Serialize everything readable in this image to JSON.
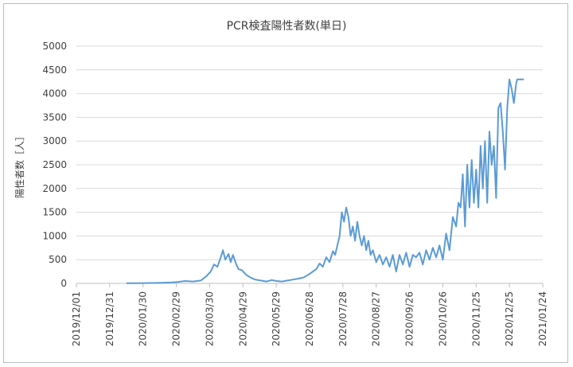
{
  "chart_data": {
    "type": "line",
    "title": "PCR検査陽性者数(単日)",
    "xlabel": "",
    "ylabel": "陽性者数［人］",
    "ylim": [
      0,
      5000
    ],
    "yticks": [
      "0",
      "500",
      "1000",
      "1500",
      "2000",
      "2500",
      "3000",
      "3500",
      "4000",
      "4500",
      "5000"
    ],
    "xticks": [
      "2019/12/01",
      "2019/12/31",
      "2020/01/30",
      "2020/02/29",
      "2020/03/30",
      "2020/04/29",
      "2020/05/29",
      "2020/06/28",
      "2020/07/28",
      "2020/08/27",
      "2020/09/26",
      "2020/10/26",
      "2020/11/25",
      "2020/12/25",
      "2021/01/24"
    ],
    "xlim": [
      "2019/12/01",
      "2021/01/24"
    ],
    "grid": "horizontal",
    "line_color": "#5b9bd5",
    "series": [
      {
        "x": [
          "2020/01/15",
          "2020/01/25",
          "2020/02/05",
          "2020/02/15",
          "2020/02/25",
          "2020/03/01",
          "2020/03/08",
          "2020/03/15",
          "2020/03/22",
          "2020/03/27",
          "2020/03/31",
          "2020/04/03",
          "2020/04/06",
          "2020/04/09",
          "2020/04/11",
          "2020/04/13",
          "2020/04/16",
          "2020/04/18",
          "2020/04/20",
          "2020/04/23",
          "2020/04/25",
          "2020/04/28",
          "2020/05/02",
          "2020/05/06",
          "2020/05/10",
          "2020/05/15",
          "2020/05/20",
          "2020/05/25",
          "2020/05/29",
          "2020/06/03",
          "2020/06/08",
          "2020/06/13",
          "2020/06/18",
          "2020/06/23",
          "2020/06/28",
          "2020/07/01",
          "2020/07/04",
          "2020/07/07",
          "2020/07/10",
          "2020/07/13",
          "2020/07/16",
          "2020/07/19",
          "2020/07/21",
          "2020/07/23",
          "2020/07/25",
          "2020/07/27",
          "2020/07/29",
          "2020/07/31",
          "2020/08/02",
          "2020/08/04",
          "2020/08/06",
          "2020/08/08",
          "2020/08/10",
          "2020/08/12",
          "2020/08/14",
          "2020/08/16",
          "2020/08/18",
          "2020/08/20",
          "2020/08/22",
          "2020/08/24",
          "2020/08/27",
          "2020/08/30",
          "2020/09/02",
          "2020/09/05",
          "2020/09/08",
          "2020/09/11",
          "2020/09/14",
          "2020/09/17",
          "2020/09/20",
          "2020/09/23",
          "2020/09/26",
          "2020/09/29",
          "2020/10/02",
          "2020/10/05",
          "2020/10/08",
          "2020/10/11",
          "2020/10/14",
          "2020/10/17",
          "2020/10/20",
          "2020/10/23",
          "2020/10/26",
          "2020/10/29",
          "2020/11/01",
          "2020/11/04",
          "2020/11/07",
          "2020/11/09",
          "2020/11/11",
          "2020/11/13",
          "2020/11/15",
          "2020/11/17",
          "2020/11/19",
          "2020/11/21",
          "2020/11/23",
          "2020/11/25",
          "2020/11/27",
          "2020/11/29",
          "2020/12/01",
          "2020/12/03",
          "2020/12/05",
          "2020/12/07",
          "2020/12/09",
          "2020/12/11",
          "2020/12/13",
          "2020/12/15",
          "2020/12/17",
          "2020/12/19",
          "2020/12/21",
          "2020/12/23",
          "2020/12/25",
          "2020/12/27",
          "2020/12/29",
          "2020/12/31",
          "2021/01/01",
          "2021/01/03",
          "2021/01/05",
          "2021/01/07"
        ],
        "y": [
          5,
          5,
          8,
          12,
          20,
          30,
          50,
          40,
          60,
          150,
          250,
          400,
          350,
          550,
          700,
          500,
          620,
          450,
          600,
          400,
          300,
          280,
          180,
          120,
          80,
          60,
          40,
          70,
          50,
          40,
          60,
          80,
          100,
          130,
          200,
          250,
          300,
          420,
          350,
          550,
          450,
          680,
          600,
          800,
          1000,
          1500,
          1300,
          1600,
          1400,
          1000,
          1200,
          900,
          1300,
          1000,
          800,
          1000,
          700,
          900,
          600,
          700,
          450,
          600,
          400,
          550,
          350,
          600,
          250,
          600,
          400,
          650,
          350,
          600,
          550,
          650,
          400,
          700,
          500,
          750,
          550,
          800,
          500,
          1050,
          700,
          1400,
          1200,
          1700,
          1600,
          2300,
          1200,
          2500,
          1600,
          2600,
          1700,
          2400,
          1600,
          2900,
          2000,
          3000,
          1700,
          3200,
          2500,
          2900,
          1800,
          3700,
          3800,
          3200,
          2400,
          3700,
          4300,
          4100,
          3800,
          4200,
          4300,
          4300,
          4300,
          4300
        ]
      }
    ]
  }
}
